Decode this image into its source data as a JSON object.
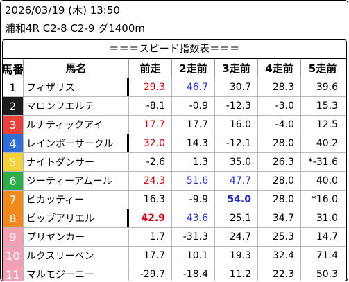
{
  "header": {
    "date": "2026/03/19 (木) 13:50",
    "race": "浦和4R C2-8 C2-9 ダ1400m"
  },
  "table": {
    "title": "＝＝＝スピード指数表＝＝＝",
    "columns": [
      "馬番",
      "馬名",
      "前走",
      "2走前",
      "3走前",
      "4走前",
      "5走前"
    ],
    "rows": [
      {
        "num": "1",
        "name": "フィザリス",
        "v": [
          "29.3",
          "46.7",
          "30.7",
          "28.3",
          "39.6"
        ],
        "bar": true,
        "colors": [
          "red",
          "blue",
          "",
          "",
          ""
        ],
        "bold": [
          false,
          false,
          false,
          false,
          false
        ]
      },
      {
        "num": "2",
        "name": "マロンフエルテ",
        "v": [
          "-8.1",
          "-0.9",
          "-12.3",
          "-3.0",
          "15.3"
        ],
        "bar": false,
        "colors": [
          "",
          "",
          "",
          "",
          ""
        ],
        "bold": [
          false,
          false,
          false,
          false,
          false
        ]
      },
      {
        "num": "3",
        "name": "ルナティックアイ",
        "v": [
          "17.7",
          "17.7",
          "16.0",
          "-4.0",
          "12.5"
        ],
        "bar": false,
        "colors": [
          "red",
          "",
          "",
          "",
          ""
        ],
        "bold": [
          false,
          false,
          false,
          false,
          false
        ]
      },
      {
        "num": "4",
        "name": "レインボーサークル",
        "v": [
          "32.0",
          "14.3",
          "-12.1",
          "28.0",
          "40.2"
        ],
        "bar": true,
        "colors": [
          "red",
          "",
          "",
          "",
          ""
        ],
        "bold": [
          false,
          false,
          false,
          false,
          false
        ]
      },
      {
        "num": "5",
        "name": "ナイトダンサー",
        "v": [
          "-2.6",
          "1.3",
          "35.0",
          "26.3",
          "*-31.6"
        ],
        "bar": false,
        "colors": [
          "",
          "",
          "",
          "",
          ""
        ],
        "bold": [
          false,
          false,
          false,
          false,
          false
        ]
      },
      {
        "num": "6",
        "name": "ジーティーアムール",
        "v": [
          "24.3",
          "51.6",
          "47.7",
          "28.0",
          "40.0"
        ],
        "bar": false,
        "colors": [
          "red",
          "blue",
          "blue",
          "",
          ""
        ],
        "bold": [
          false,
          false,
          false,
          false,
          false
        ]
      },
      {
        "num": "7",
        "name": "ピカッティー",
        "v": [
          "16.3",
          "-9.9",
          "54.0",
          "28.0",
          "*16.0"
        ],
        "bar": false,
        "colors": [
          "",
          "",
          "blue",
          "",
          ""
        ],
        "bold": [
          false,
          false,
          true,
          false,
          false
        ]
      },
      {
        "num": "8",
        "name": "ビップアリエル",
        "v": [
          "42.9",
          "43.6",
          "25.1",
          "34.7",
          "31.0"
        ],
        "bar": true,
        "colors": [
          "red",
          "blue",
          "",
          "",
          ""
        ],
        "bold": [
          true,
          false,
          false,
          false,
          false
        ]
      },
      {
        "num": "9",
        "name": "プリヤンカー",
        "v": [
          "1.7",
          "-31.3",
          "24.7",
          "25.3",
          "14.7"
        ],
        "bar": false,
        "colors": [
          "",
          "",
          "",
          "",
          ""
        ],
        "bold": [
          false,
          false,
          false,
          false,
          false
        ]
      },
      {
        "num": "10",
        "name": "ルクスリーベン",
        "v": [
          "17.7",
          "10.1",
          "19.3",
          "32.4",
          "71.4"
        ],
        "bar": false,
        "colors": [
          "",
          "",
          "",
          "",
          ""
        ],
        "bold": [
          false,
          false,
          false,
          false,
          false
        ]
      },
      {
        "num": "11",
        "name": "マルモジーニー",
        "v": [
          "-29.7",
          "-18.4",
          "11.2",
          "22.3",
          "50.3"
        ],
        "bar": false,
        "colors": [
          "",
          "",
          "",
          "",
          ""
        ],
        "bold": [
          false,
          false,
          false,
          false,
          false
        ]
      }
    ]
  },
  "frame_colors": {
    "1": {
      "bg": "#ffffff",
      "fg": "#000000"
    },
    "2": {
      "bg": "#1c1c1c",
      "fg": "#ffffff"
    },
    "3": {
      "bg": "#e8413a",
      "fg": "#ffffff"
    },
    "4": {
      "bg": "#2f6fd6",
      "fg": "#ffffff"
    },
    "5": {
      "bg": "#f2d13a",
      "fg": "#ffffff"
    },
    "6": {
      "bg": "#2eae4a",
      "fg": "#ffffff"
    },
    "7": {
      "bg": "#f08a1e",
      "fg": "#ffffff"
    },
    "8": {
      "bg": "#f08a1e",
      "fg": "#ffffff"
    },
    "9": {
      "bg": "#f4a0b4",
      "fg": "#ffffff"
    },
    "10": {
      "bg": "#f4a0b4",
      "fg": "#ffffff"
    },
    "11": {
      "bg": "#f4a0b4",
      "fg": "#ffffff"
    }
  }
}
